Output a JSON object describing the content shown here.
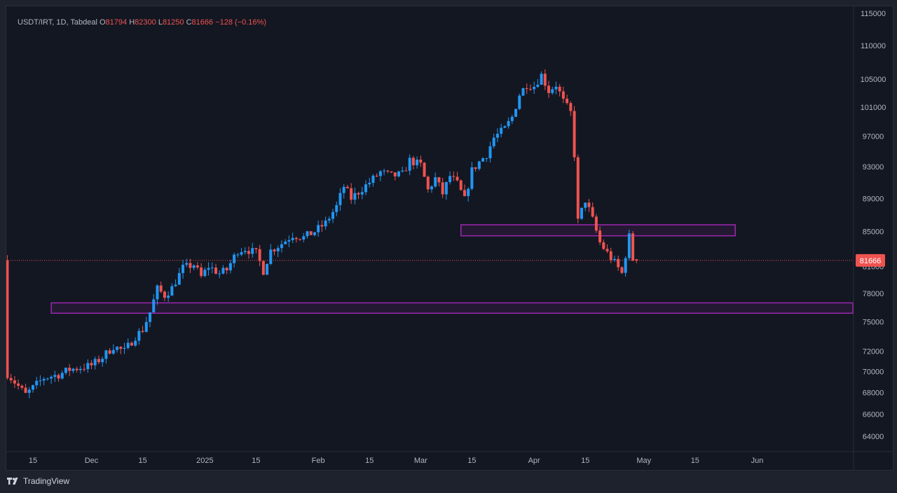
{
  "header": {
    "symbol": "USDT/IRT, 1D, Tabdeal",
    "open_label": "O",
    "open": "81794",
    "high_label": "H",
    "high": "82300",
    "low_label": "L",
    "low": "81250",
    "close_label": "C",
    "close": "81666",
    "change": "−128 (−0.16%)"
  },
  "price_label": "81666",
  "footer": {
    "brand": "TradingView"
  },
  "colors": {
    "up": "#2196f3",
    "down": "#ef5350",
    "zone": "#9c27b0",
    "background": "#131722",
    "price_label_bg": "#ef5350"
  },
  "chart_data": {
    "type": "candlestick",
    "x_ticks": [
      {
        "label": "15",
        "date": "2024-11-15"
      },
      {
        "label": "Dec",
        "date": "2024-12-01"
      },
      {
        "label": "15",
        "date": "2024-12-15"
      },
      {
        "label": "2025",
        "date": "2025-01-01"
      },
      {
        "label": "15",
        "date": "2025-01-15"
      },
      {
        "label": "Feb",
        "date": "2025-02-01"
      },
      {
        "label": "15",
        "date": "2025-02-15"
      },
      {
        "label": "Mar",
        "date": "2025-03-01"
      },
      {
        "label": "15",
        "date": "2025-03-15"
      },
      {
        "label": "Apr",
        "date": "2025-04-01"
      },
      {
        "label": "15",
        "date": "2025-04-15"
      },
      {
        "label": "May",
        "date": "2025-05-01"
      },
      {
        "label": "15",
        "date": "2025-05-15"
      },
      {
        "label": "Jun",
        "date": "2025-06-01"
      }
    ],
    "y_ticks": [
      64000,
      66000,
      68000,
      70000,
      72000,
      75000,
      78000,
      81000,
      85000,
      89000,
      93000,
      97000,
      101000,
      105000,
      110000,
      115000
    ],
    "y_scale": "log",
    "last_price": 81666,
    "zones": [
      {
        "start": "2024-11-20",
        "end": "2025-06-30",
        "low": 75900,
        "high": 77000
      },
      {
        "start": "2025-03-12",
        "end": "2025-05-26",
        "low": 84500,
        "high": 85800
      }
    ],
    "path": [
      [
        "2024-11-08",
        69800
      ],
      [
        "2024-11-13",
        67800
      ],
      [
        "2024-11-18",
        69400
      ],
      [
        "2024-11-22",
        69700
      ],
      [
        "2024-11-25",
        70200
      ],
      [
        "2024-11-28",
        70400
      ],
      [
        "2024-12-01",
        70600
      ],
      [
        "2024-12-04",
        71400
      ],
      [
        "2024-12-07",
        72500
      ],
      [
        "2024-12-10",
        72000
      ],
      [
        "2024-12-13",
        73500
      ],
      [
        "2024-12-15",
        74200
      ],
      [
        "2024-12-17",
        76000
      ],
      [
        "2024-12-19",
        78500
      ],
      [
        "2024-12-21",
        77800
      ],
      [
        "2024-12-23",
        78600
      ],
      [
        "2024-12-26",
        80800
      ],
      [
        "2024-12-29",
        81200
      ],
      [
        "2024-12-31",
        79800
      ],
      [
        "2025-01-02",
        81000
      ],
      [
        "2025-01-05",
        80200
      ],
      [
        "2025-01-07",
        80600
      ],
      [
        "2025-01-10",
        82800
      ],
      [
        "2025-01-12",
        83000
      ],
      [
        "2025-01-15",
        82500
      ],
      [
        "2025-01-17",
        80500
      ],
      [
        "2025-01-19",
        82800
      ],
      [
        "2025-01-22",
        83600
      ],
      [
        "2025-01-25",
        84600
      ],
      [
        "2025-01-28",
        84300
      ],
      [
        "2025-01-31",
        85000
      ],
      [
        "2025-02-03",
        86000
      ],
      [
        "2025-02-06",
        88000
      ],
      [
        "2025-02-08",
        90500
      ],
      [
        "2025-02-10",
        89000
      ],
      [
        "2025-02-12",
        89800
      ],
      [
        "2025-02-15",
        91000
      ],
      [
        "2025-02-18",
        92300
      ],
      [
        "2025-02-21",
        91800
      ],
      [
        "2025-02-24",
        92000
      ],
      [
        "2025-02-26",
        93800
      ],
      [
        "2025-03-01",
        93200
      ],
      [
        "2025-03-03",
        90000
      ],
      [
        "2025-03-05",
        91500
      ],
      [
        "2025-03-07",
        89600
      ],
      [
        "2025-03-09",
        91800
      ],
      [
        "2025-03-11",
        90800
      ],
      [
        "2025-03-13",
        88800
      ],
      [
        "2025-03-15",
        92500
      ],
      [
        "2025-03-17",
        93600
      ],
      [
        "2025-03-19",
        94600
      ],
      [
        "2025-03-21",
        96800
      ],
      [
        "2025-03-24",
        98000
      ],
      [
        "2025-03-26",
        99600
      ],
      [
        "2025-03-28",
        102800
      ],
      [
        "2025-03-30",
        104200
      ],
      [
        "2025-04-01",
        104000
      ],
      [
        "2025-04-03",
        105600
      ],
      [
        "2025-04-05",
        103300
      ],
      [
        "2025-04-07",
        104200
      ],
      [
        "2025-04-09",
        101800
      ],
      [
        "2025-04-11",
        100200
      ],
      [
        "2025-04-12",
        94600
      ],
      [
        "2025-04-13",
        86200
      ],
      [
        "2025-04-15",
        88800
      ],
      [
        "2025-04-17",
        86400
      ],
      [
        "2025-04-19",
        83700
      ],
      [
        "2025-04-21",
        82500
      ],
      [
        "2025-04-23",
        81400
      ],
      [
        "2025-04-25",
        80200
      ],
      [
        "2025-04-26",
        82300
      ],
      [
        "2025-04-27",
        84400
      ],
      [
        "2025-04-28",
        81800
      ],
      [
        "2025-04-29",
        81666
      ]
    ]
  }
}
